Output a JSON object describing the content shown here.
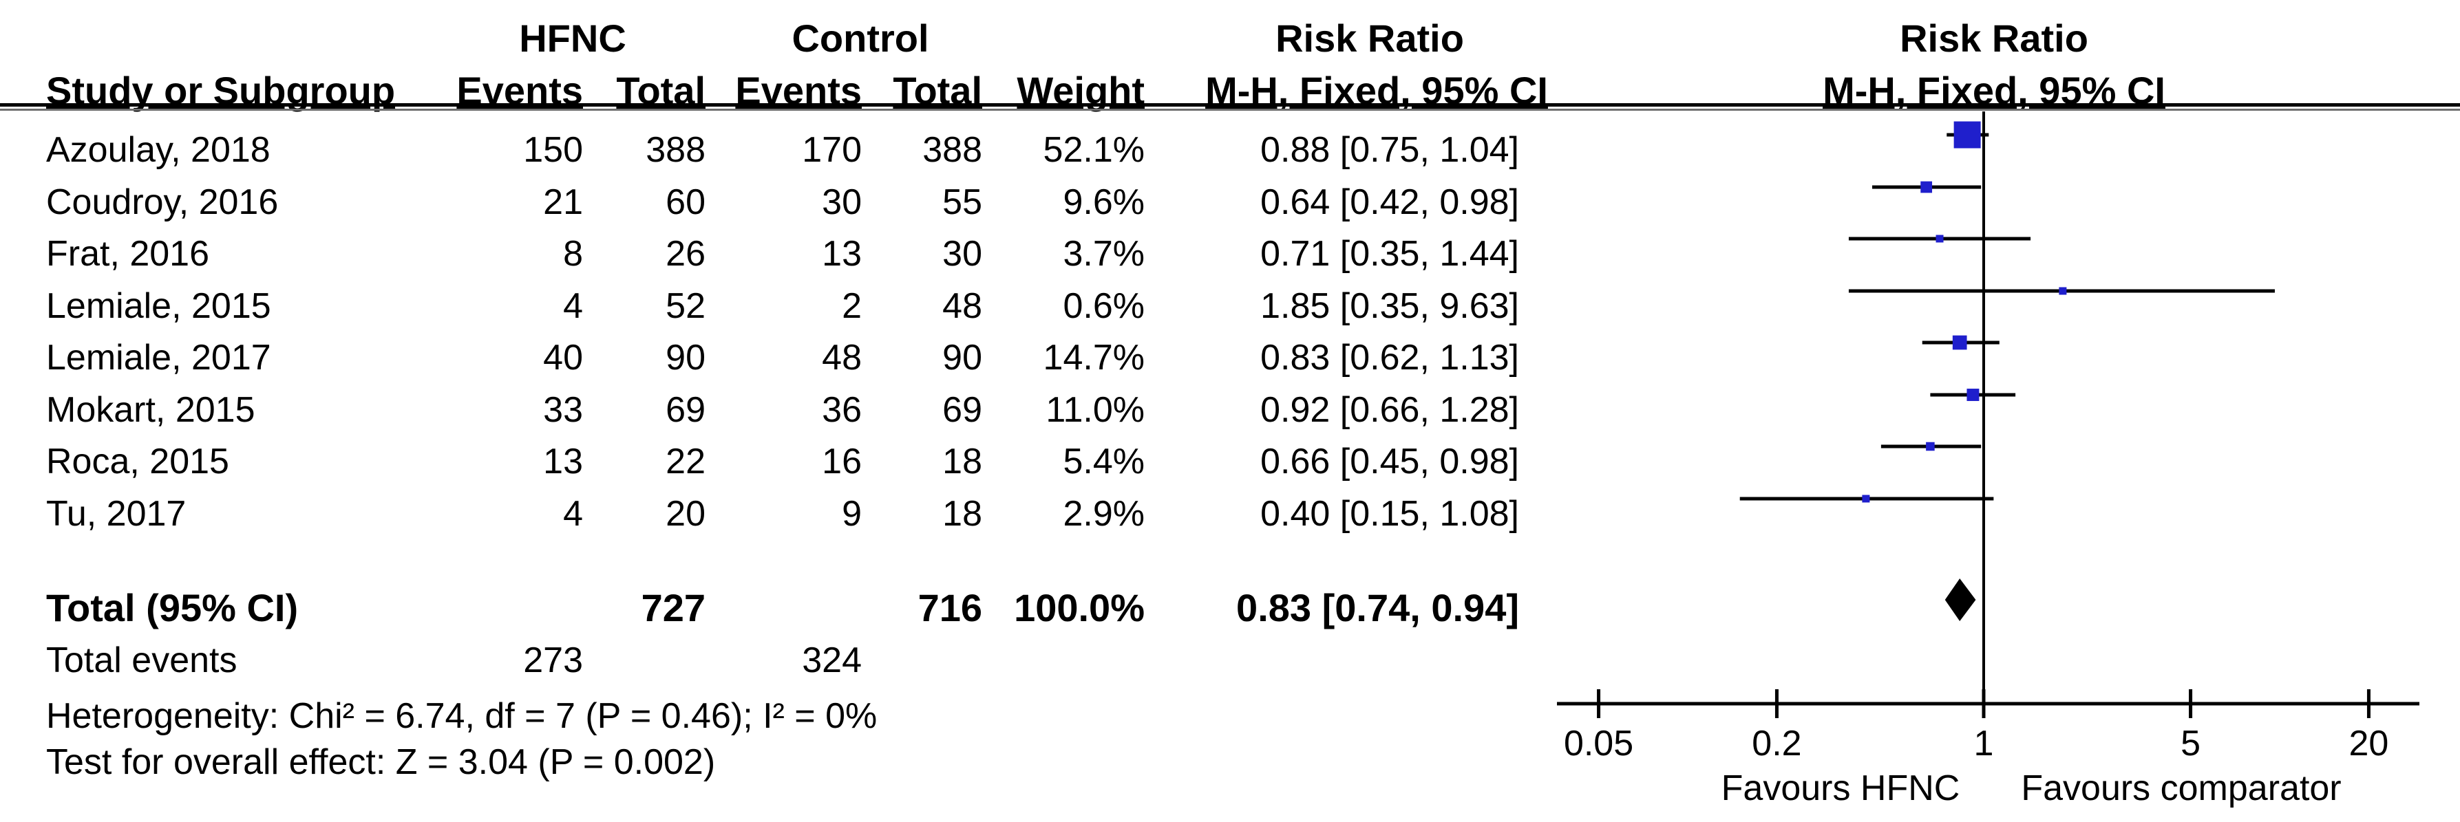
{
  "header": {
    "group1": "HFNC",
    "group2": "Control",
    "col_study": "Study or Subgroup",
    "col_events": "Events",
    "col_total": "Total",
    "col_weight": "Weight",
    "rr_title": "Risk Ratio",
    "rr_subtitle": "M-H, Fixed, 95% CI"
  },
  "studies": [
    {
      "name": "Azoulay, 2018",
      "e1": "150",
      "t1": "388",
      "e2": "170",
      "t2": "388",
      "weight": "52.1%",
      "rr_text": "0.88 [0.75, 1.04]"
    },
    {
      "name": "Coudroy, 2016",
      "e1": "21",
      "t1": "60",
      "e2": "30",
      "t2": "55",
      "weight": "9.6%",
      "rr_text": "0.64 [0.42, 0.98]"
    },
    {
      "name": "Frat, 2016",
      "e1": "8",
      "t1": "26",
      "e2": "13",
      "t2": "30",
      "weight": "3.7%",
      "rr_text": "0.71 [0.35, 1.44]"
    },
    {
      "name": "Lemiale, 2015",
      "e1": "4",
      "t1": "52",
      "e2": "2",
      "t2": "48",
      "weight": "0.6%",
      "rr_text": "1.85 [0.35, 9.63]"
    },
    {
      "name": "Lemiale, 2017",
      "e1": "40",
      "t1": "90",
      "e2": "48",
      "t2": "90",
      "weight": "14.7%",
      "rr_text": "0.83 [0.62, 1.13]"
    },
    {
      "name": "Mokart, 2015",
      "e1": "33",
      "t1": "69",
      "e2": "36",
      "t2": "69",
      "weight": "11.0%",
      "rr_text": "0.92 [0.66, 1.28]"
    },
    {
      "name": "Roca, 2015",
      "e1": "13",
      "t1": "22",
      "e2": "16",
      "t2": "18",
      "weight": "5.4%",
      "rr_text": "0.66 [0.45, 0.98]"
    },
    {
      "name": "Tu, 2017",
      "e1": "4",
      "t1": "20",
      "e2": "9",
      "t2": "18",
      "weight": "2.9%",
      "rr_text": "0.40 [0.15, 1.08]"
    }
  ],
  "total_row": {
    "label": "Total (95% CI)",
    "t1": "727",
    "t2": "716",
    "weight": "100.0%",
    "rr_text": "0.83 [0.74, 0.94]"
  },
  "total_events": {
    "label": "Total events",
    "e1": "273",
    "e2": "324"
  },
  "footnotes": {
    "heterogeneity": "Heterogeneity: Chi² = 6.74, df = 7 (P = 0.46); I² = 0%",
    "overall_effect": "Test for overall effect: Z = 3.04 (P = 0.002)"
  },
  "chart_data": {
    "type": "forest",
    "title": "Risk Ratio",
    "subtitle": "M-H, Fixed, 95% CI",
    "x_scale": "log",
    "null_line_value": 1,
    "axis_ticks": [
      "0.05",
      "0.2",
      "1",
      "5",
      "20"
    ],
    "xlim": [
      0.05,
      20
    ],
    "favours_left": "Favours HFNC",
    "favours_right": "Favours comparator",
    "marker_color": "#1F1FCC",
    "diamond_color": "#000000",
    "series": [
      {
        "study": "Azoulay, 2018",
        "rr": 0.88,
        "ci_low": 0.75,
        "ci_high": 1.04,
        "weight_pct": 52.1
      },
      {
        "study": "Coudroy, 2016",
        "rr": 0.64,
        "ci_low": 0.42,
        "ci_high": 0.98,
        "weight_pct": 9.6
      },
      {
        "study": "Frat, 2016",
        "rr": 0.71,
        "ci_low": 0.35,
        "ci_high": 1.44,
        "weight_pct": 3.7
      },
      {
        "study": "Lemiale, 2015",
        "rr": 1.85,
        "ci_low": 0.35,
        "ci_high": 9.63,
        "weight_pct": 0.6
      },
      {
        "study": "Lemiale, 2017",
        "rr": 0.83,
        "ci_low": 0.62,
        "ci_high": 1.13,
        "weight_pct": 14.7
      },
      {
        "study": "Mokart, 2015",
        "rr": 0.92,
        "ci_low": 0.66,
        "ci_high": 1.28,
        "weight_pct": 11.0
      },
      {
        "study": "Roca, 2015",
        "rr": 0.66,
        "ci_low": 0.45,
        "ci_high": 0.98,
        "weight_pct": 5.4
      },
      {
        "study": "Tu, 2017",
        "rr": 0.4,
        "ci_low": 0.15,
        "ci_high": 1.08,
        "weight_pct": 2.9
      }
    ],
    "total": {
      "label": "Total (95% CI)",
      "rr": 0.83,
      "ci_low": 0.74,
      "ci_high": 0.94,
      "weight_pct": 100.0
    }
  }
}
